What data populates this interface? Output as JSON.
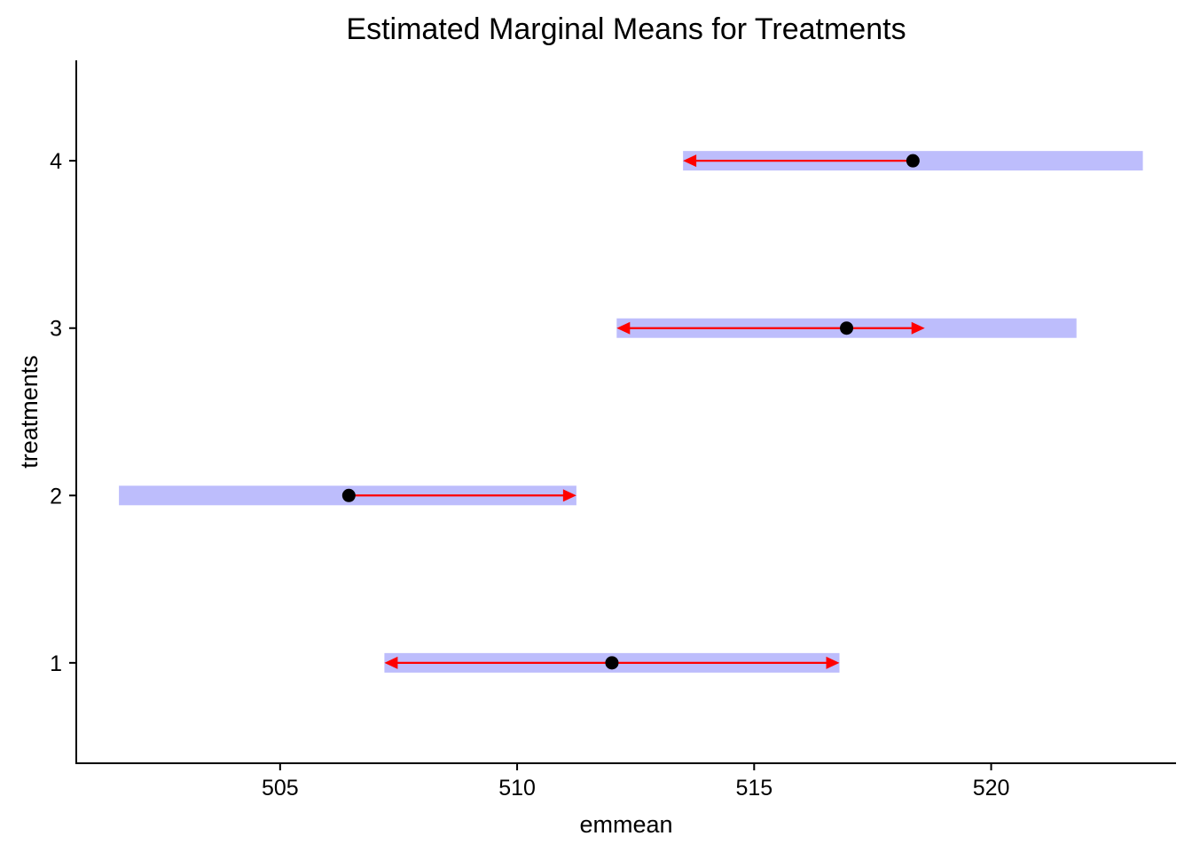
{
  "chart_data": {
    "type": "emmeans-interval",
    "title": "Estimated Marginal Means for Treatments",
    "xlabel": "emmean",
    "ylabel": "treatments",
    "x_ticks": [
      505,
      510,
      515,
      520
    ],
    "y_ticks": [
      "1",
      "2",
      "3",
      "4"
    ],
    "xlim": [
      500.7,
      523.9
    ],
    "ylim": [
      0.4,
      4.6
    ],
    "grid": false,
    "legend": "none",
    "colors": {
      "confidence_band": "#bdbdfc",
      "comparison_arrow": "#ff0000",
      "point": "#000000"
    },
    "series": [
      {
        "treatment": "1",
        "emmean": 512.0,
        "lower_CL": 507.2,
        "upper_CL": 516.8,
        "arrow_lower": 507.2,
        "arrow_upper": 516.8
      },
      {
        "treatment": "2",
        "emmean": 506.45,
        "lower_CL": 501.6,
        "upper_CL": 511.25,
        "arrow_lower": null,
        "arrow_upper": 511.25
      },
      {
        "treatment": "3",
        "emmean": 516.95,
        "lower_CL": 512.1,
        "upper_CL": 521.8,
        "arrow_lower": 512.1,
        "arrow_upper": 518.6
      },
      {
        "treatment": "4",
        "emmean": 518.35,
        "lower_CL": 513.5,
        "upper_CL": 523.2,
        "arrow_lower": 513.5,
        "arrow_upper": null
      }
    ]
  }
}
